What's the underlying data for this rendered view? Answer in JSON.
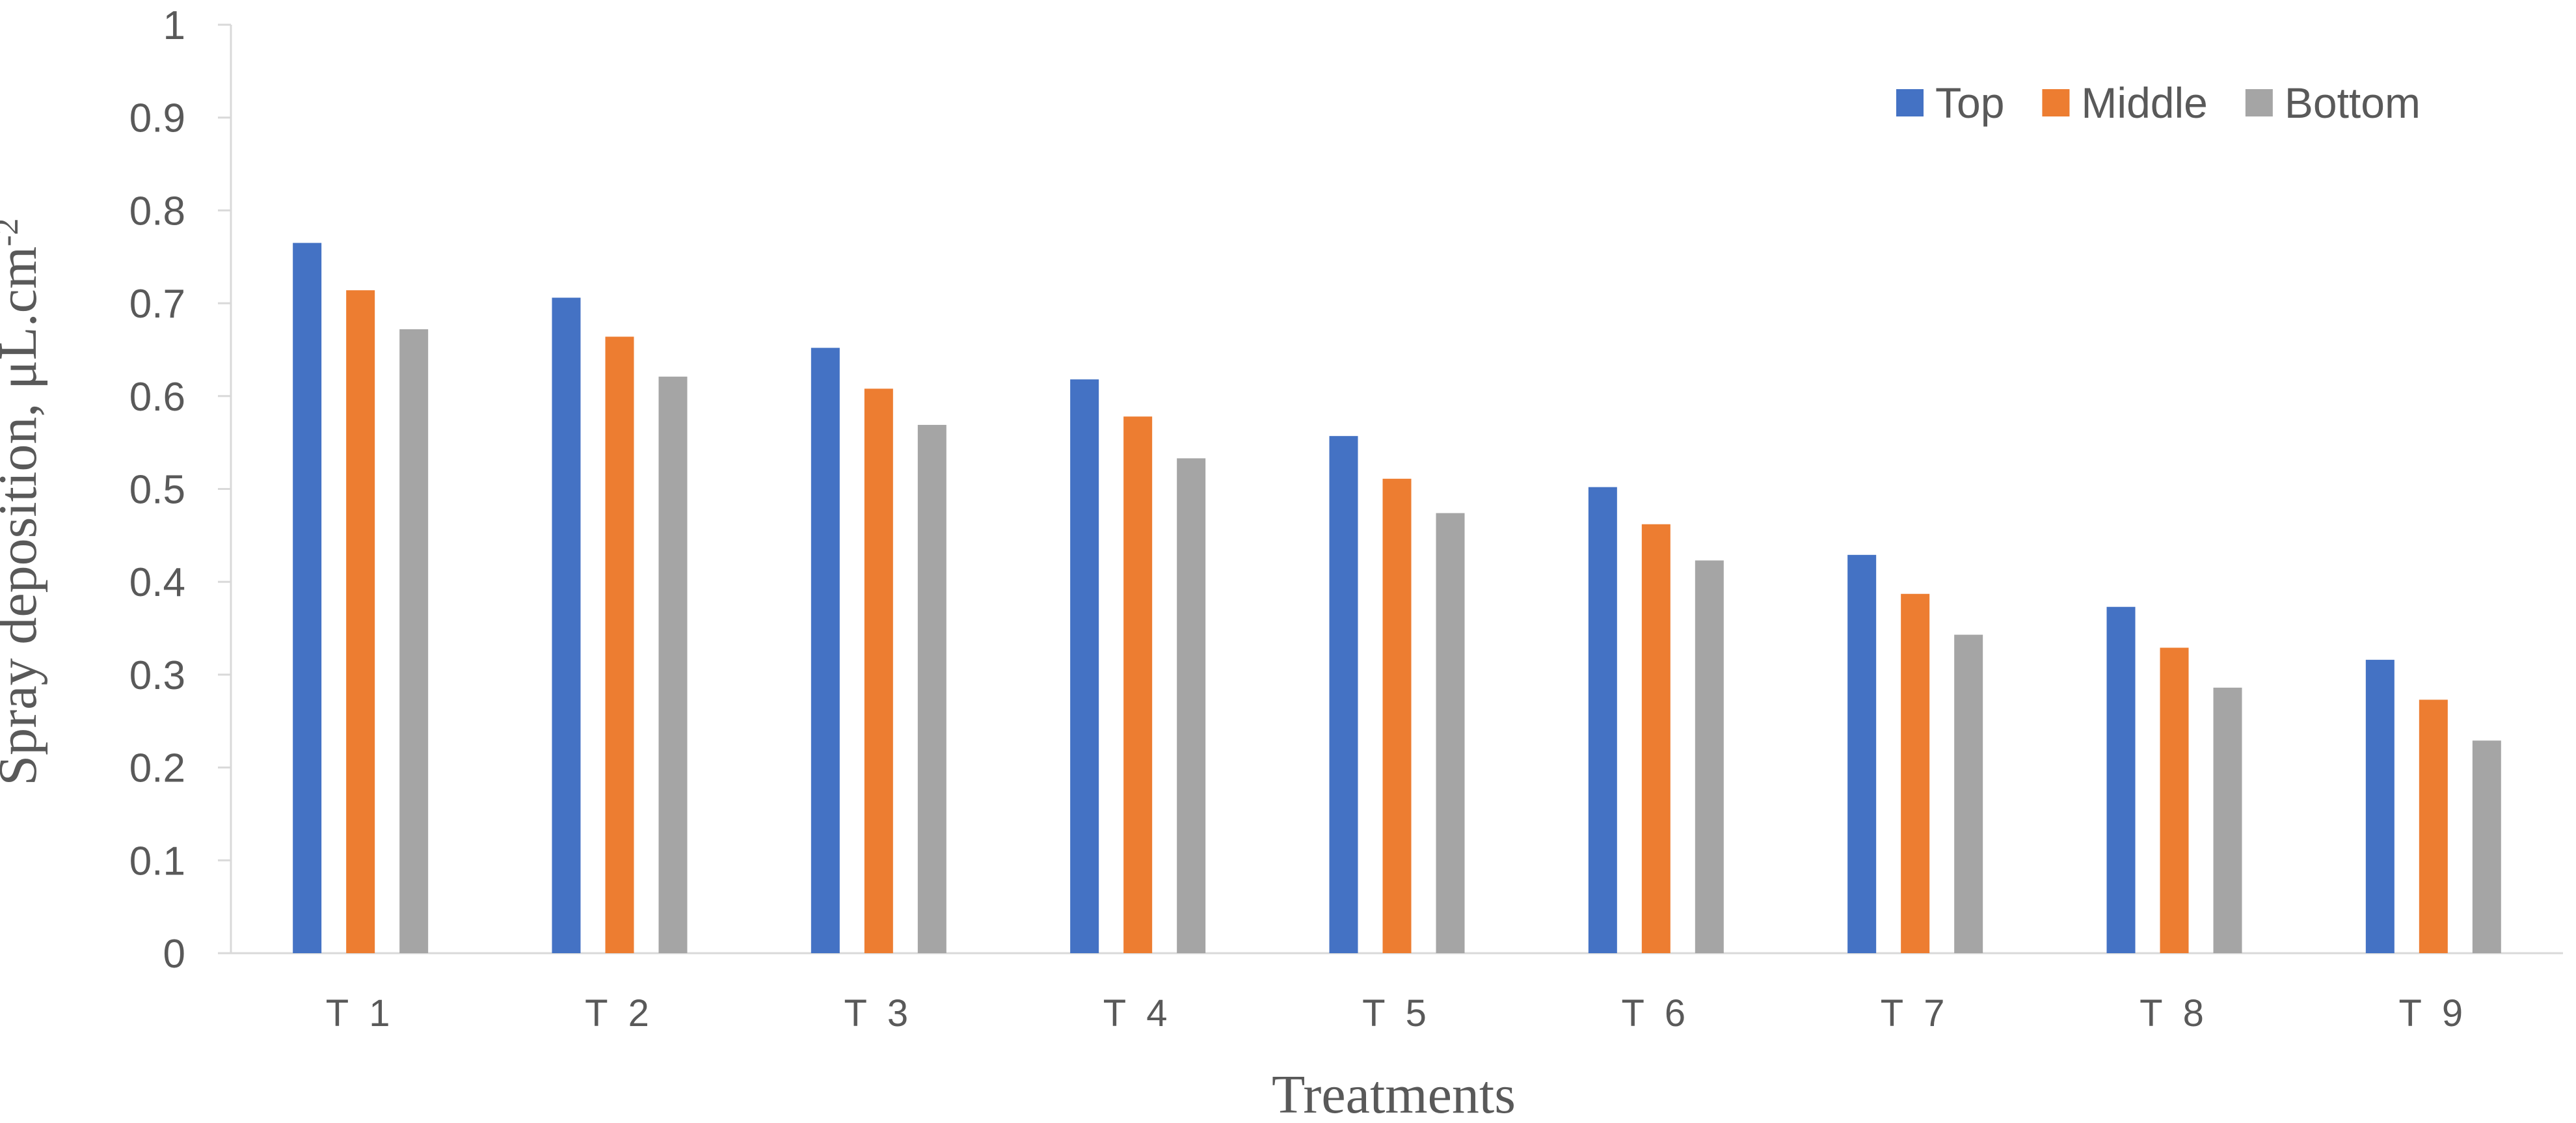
{
  "chart_data": {
    "type": "bar",
    "categories": [
      "T 1",
      "T 2",
      "T 3",
      "T 4",
      "T 5",
      "T 6",
      "T 7",
      "T 8",
      "T 9"
    ],
    "series": [
      {
        "name": "Top",
        "color": "#4472C4",
        "values": [
          0.765,
          0.706,
          0.652,
          0.618,
          0.557,
          0.502,
          0.429,
          0.373,
          0.316
        ]
      },
      {
        "name": "Middle",
        "color": "#ED7D31",
        "values": [
          0.714,
          0.664,
          0.608,
          0.578,
          0.511,
          0.462,
          0.387,
          0.329,
          0.273
        ]
      },
      {
        "name": "Bottom",
        "color": "#A5A5A5",
        "values": [
          0.672,
          0.621,
          0.569,
          0.533,
          0.474,
          0.423,
          0.343,
          0.286,
          0.229
        ]
      }
    ],
    "ylim": [
      0,
      1
    ],
    "yticks": [
      "0",
      "0.1",
      "0.2",
      "0.3",
      "0.4",
      "0.5",
      "0.6",
      "0.7",
      "0.8",
      "0.9",
      "1"
    ],
    "xlabel": "Treatments",
    "ylabel": "Spray deposition, μL.cm",
    "ylabel_superscript": "-2",
    "legend_position": "top-right",
    "grid": false
  }
}
